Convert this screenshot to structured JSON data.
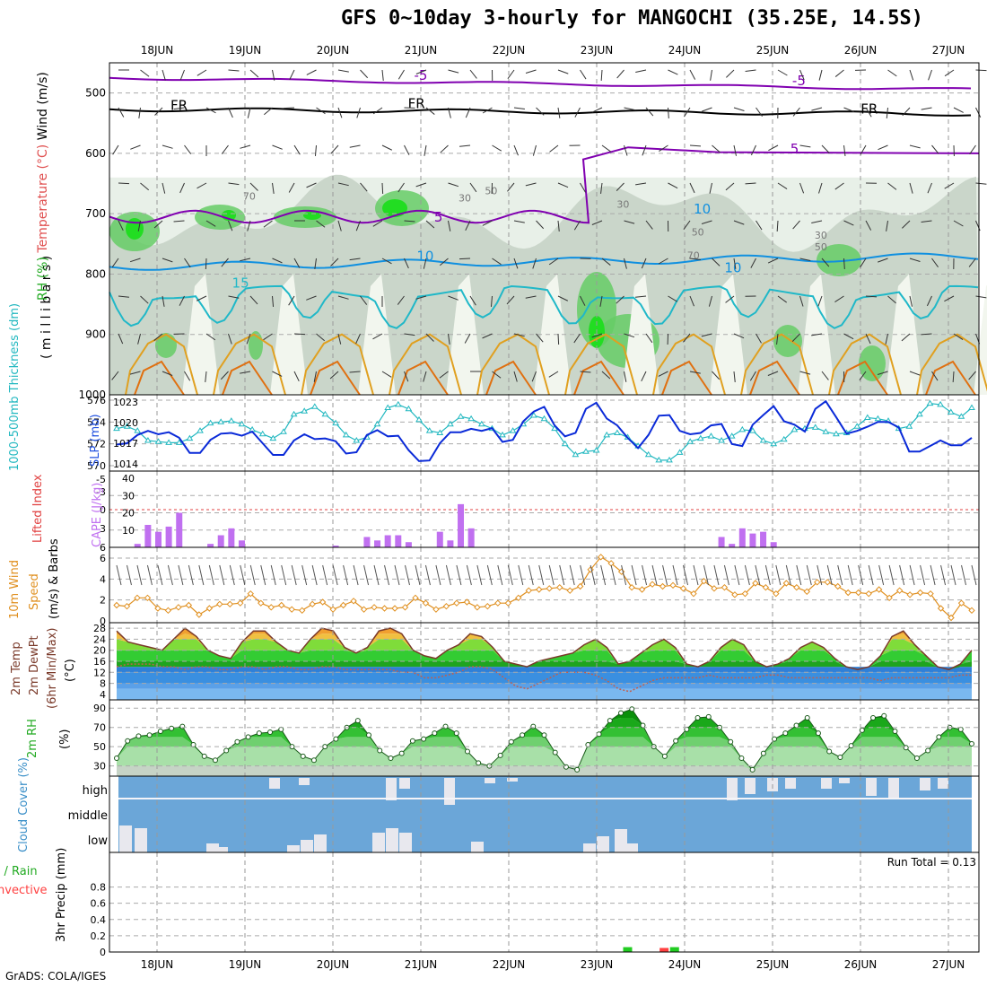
{
  "title": "GFS 0~10day 3-hourly for MANGOCHI (35.25E, 14.5S)",
  "footer": "GrADS: COLA/IGES",
  "colors": {
    "rh_light": "#e8f0e8",
    "rh_mid": "#c6d3c6",
    "rh_green": "#66cc66",
    "rh_bright": "#22dd22",
    "contour_purple": "#8000b0",
    "contour_cyan": "#20b8c8",
    "contour_blue": "#1090e0",
    "contour_orange": "#e0a020",
    "contour_dark_orange": "#e07010",
    "slp_line": "#0a2ad8",
    "thickness_line": "#22b8c0",
    "cape_bar": "#c070f0",
    "wind_line": "#e09020",
    "temp_band_blue": "#3a8fe0",
    "temp_band_green": "#22bb22",
    "rh_fill": "#22bb22",
    "cloud_blue": "#6ba6d8",
    "cloud_cover": "#e8e8ee",
    "precip_rain": "#22cc22",
    "precip_conv": "#ff4040"
  },
  "chart_data": [
    {
      "type": "heatmap",
      "panel": "upper-air",
      "ylabel_parts": [
        "RH (%)",
        "Temperature (°C)",
        "Wind (m/s)"
      ],
      "ylabel_secondary": "( m i l l i b a r s )",
      "x_tick_labels": [
        "18JUN",
        "19JUN",
        "20JUN",
        "21JUN",
        "22JUN",
        "23JUN",
        "24JUN",
        "25JUN",
        "26JUN",
        "27JUN"
      ],
      "y_ticks": [
        500,
        600,
        700,
        800,
        900,
        1000
      ],
      "ylim": [
        450,
        1000
      ],
      "contour_labels": [
        {
          "text": "-5",
          "x": 3.0,
          "y": 478
        },
        {
          "text": "-5",
          "x": 7.3,
          "y": 487
        },
        {
          "text": "FR",
          "x": 0.25,
          "y": 528
        },
        {
          "text": "FR",
          "x": 2.95,
          "y": 525
        },
        {
          "text": "FR",
          "x": 8.1,
          "y": 534
        },
        {
          "text": "5",
          "x": 7.25,
          "y": 600
        },
        {
          "text": "5",
          "x": 3.2,
          "y": 713
        },
        {
          "text": "10",
          "x": 3.05,
          "y": 778
        },
        {
          "text": "10",
          "x": 6.55,
          "y": 797
        },
        {
          "text": "15",
          "x": 0.95,
          "y": 822
        },
        {
          "text": "70",
          "x": 1.05,
          "y": 677
        },
        {
          "text": "30",
          "x": 3.5,
          "y": 680
        },
        {
          "text": "50",
          "x": 3.8,
          "y": 668
        },
        {
          "text": "30",
          "x": 5.3,
          "y": 690
        },
        {
          "text": "10",
          "x": 6.2,
          "y": 700
        },
        {
          "text": "50",
          "x": 6.15,
          "y": 736
        },
        {
          "text": "70",
          "x": 6.1,
          "y": 775
        },
        {
          "text": "30",
          "x": 7.55,
          "y": 741
        },
        {
          "text": "50",
          "x": 7.55,
          "y": 761
        }
      ]
    },
    {
      "type": "line",
      "panel": "slp-thickness",
      "ylabel_left": "1000-500mb Thickness (dm)",
      "ylabel_right": "SLP (mb)",
      "left_ticks": [
        570,
        572,
        574,
        576
      ],
      "right_ticks": [
        1014,
        1017,
        1020,
        1023
      ],
      "x_tick_labels": [
        "18JUN",
        "19JUN",
        "20JUN",
        "21JUN",
        "22JUN",
        "23JUN",
        "24JUN",
        "25JUN",
        "26JUN",
        "27JUN"
      ],
      "series": [
        {
          "name": "SLP (mb)",
          "values": [
            1016.8,
            1017.0,
            1018.2,
            1018.8,
            1018.3,
            1018.6,
            1017.8,
            1015.6,
            1015.6,
            1017.5,
            1018.4,
            1018.5,
            1018.1,
            1018.7,
            1017.0,
            1015.3,
            1015.3,
            1017.4,
            1018.3,
            1017.6,
            1017.7,
            1017.3,
            1015.5,
            1015.7,
            1018.2,
            1018.9,
            1018.0,
            1018.1,
            1016.0,
            1014.4,
            1014.5,
            1017.0,
            1018.6,
            1018.6,
            1019.1,
            1018.8,
            1019.2,
            1017.2,
            1017.5,
            1020.2,
            1021.6,
            1022.3,
            1019.6,
            1018.0,
            1018.5,
            1022.0,
            1022.9,
            1020.6,
            1019.6,
            1017.8,
            1016.3,
            1018.2,
            1021.0,
            1021.1,
            1018.8,
            1018.3,
            1018.5,
            1019.6,
            1019.8,
            1016.9,
            1016.6,
            1019.7,
            1021.1,
            1022.4,
            1020.2,
            1019.7,
            1018.7,
            1022.0,
            1023.1,
            1020.8,
            1018.4,
            1018.8,
            1019.4,
            1020.1,
            1020.1,
            1019.3,
            1015.8,
            1015.8,
            1016.6,
            1017.4,
            1016.7,
            1016.7,
            1017.8
          ]
        },
        {
          "name": "Thickness (dm)",
          "values": [
            573.4,
            573.6,
            573.2,
            572.3,
            572.2,
            572.1,
            572.1,
            572.5,
            573.2,
            573.9,
            574.0,
            574.1,
            573.8,
            573.3,
            572.9,
            572.5,
            573.1,
            574.7,
            575.0,
            575.4,
            574.7,
            573.9,
            572.8,
            572.3,
            572.6,
            573.8,
            575.3,
            575.6,
            575.2,
            574.2,
            573.2,
            573.0,
            573.8,
            574.5,
            574.3,
            573.8,
            573.4,
            572.8,
            573.2,
            573.8,
            574.6,
            574.3,
            573.4,
            572.0,
            571.0,
            571.3,
            571.4,
            572.8,
            573.0,
            572.6,
            571.8,
            571.0,
            570.5,
            570.5,
            571.2,
            572.2,
            572.5,
            572.7,
            572.3,
            572.7,
            573.3,
            573.2,
            572.3,
            572.0,
            572.4,
            573.3,
            573.4,
            573.5,
            573.1,
            572.9,
            573.0,
            573.6,
            574.4,
            574.3,
            574.1,
            573.4,
            573.6,
            574.7,
            575.7,
            575.6,
            574.9,
            574.5,
            575.3
          ]
        }
      ]
    },
    {
      "type": "bar",
      "panel": "cape",
      "ylabel_left": "Lifted Index",
      "ylabel_right": "CAPE (J/kg)",
      "left_ticks": [
        "-5",
        "-3",
        "0",
        "3",
        "6"
      ],
      "right_ticks": [
        10,
        20,
        30,
        40
      ],
      "x_tick_labels": [
        "18JUN",
        "19JUN",
        "20JUN",
        "21JUN",
        "22JUN",
        "23JUN",
        "24JUN",
        "25JUN",
        "26JUN",
        "27JUN"
      ],
      "values": [
        0,
        0,
        2,
        13,
        9,
        12,
        20,
        0,
        0,
        2,
        7,
        11,
        4,
        0,
        0,
        0,
        0,
        0,
        0,
        0,
        0,
        1,
        0,
        0,
        6,
        4,
        7,
        7,
        3,
        0,
        0,
        9,
        4,
        25,
        11,
        0,
        0,
        0,
        0,
        0,
        0,
        0,
        0,
        0,
        0,
        0,
        0,
        0,
        0,
        0,
        0,
        0,
        0,
        0,
        0,
        0,
        0,
        0,
        6,
        2,
        11,
        8,
        9,
        3,
        0,
        0,
        0,
        0,
        0,
        0,
        0,
        0,
        0,
        0,
        0,
        0,
        0,
        0,
        0,
        0,
        0,
        0,
        0
      ]
    },
    {
      "type": "line",
      "panel": "10m-wind",
      "ylabel": "10m Wind Speed (m/s) & Barbs",
      "y_ticks": [
        0,
        2,
        4,
        6
      ],
      "x_tick_labels": [
        "18JUN",
        "19JUN",
        "20JUN",
        "21JUN",
        "22JUN",
        "23JUN",
        "24JUN",
        "25JUN",
        "26JUN",
        "27JUN"
      ],
      "values": [
        1.5,
        1.4,
        2.2,
        2.2,
        1.2,
        1.0,
        1.3,
        1.5,
        0.6,
        1.2,
        1.6,
        1.6,
        1.7,
        2.6,
        1.7,
        1.3,
        1.5,
        1.1,
        1.0,
        1.6,
        1.8,
        1.1,
        1.5,
        1.9,
        1.1,
        1.3,
        1.2,
        1.2,
        1.3,
        2.2,
        1.7,
        1.1,
        1.4,
        1.7,
        1.8,
        1.3,
        1.4,
        1.7,
        1.7,
        2.2,
        2.9,
        3.0,
        3.1,
        3.2,
        2.9,
        3.3,
        4.9,
        6.1,
        5.5,
        4.7,
        3.2,
        3.0,
        3.5,
        3.3,
        3.4,
        3.1,
        2.6,
        3.8,
        3.1,
        3.2,
        2.5,
        2.6,
        3.6,
        3.2,
        2.6,
        3.6,
        3.2,
        2.8,
        3.7,
        3.7,
        3.3,
        2.7,
        2.7,
        2.6,
        3.0,
        2.2,
        2.9,
        2.5,
        2.7,
        2.6,
        1.2,
        0.3,
        1.7,
        1.0
      ]
    },
    {
      "type": "area",
      "panel": "2m-temp",
      "ylabel": "2m Temp 2m DewPt (6hr Min/Max) (°C)",
      "y_ticks": [
        4,
        8,
        12,
        16,
        20,
        24,
        28
      ],
      "x_tick_labels": [
        "18JUN",
        "19JUN",
        "20JUN",
        "21JUN",
        "22JUN",
        "23JUN",
        "24JUN",
        "25JUN",
        "26JUN",
        "27JUN"
      ],
      "series": [
        {
          "name": "2m Temp",
          "values": [
            27,
            23,
            22,
            21,
            20,
            24,
            28,
            25,
            20,
            18,
            17,
            23,
            27,
            27,
            23,
            20,
            19,
            24,
            28,
            27,
            21,
            19,
            21,
            27,
            28,
            26,
            20,
            18,
            17,
            20,
            22,
            26,
            25,
            21,
            16,
            15,
            14,
            16,
            17,
            18,
            19,
            22,
            24,
            21,
            15,
            16,
            19,
            22,
            24,
            21,
            15,
            14,
            16,
            21,
            24,
            22,
            16,
            14,
            15,
            17,
            21,
            23,
            21,
            17,
            14,
            13,
            14,
            18,
            25,
            27,
            22,
            18,
            14,
            13,
            15,
            20
          ]
        },
        {
          "name": "2m DewPt",
          "values": [
            14,
            15,
            15,
            15,
            14,
            14,
            13,
            14,
            14,
            13,
            13,
            14,
            14,
            13,
            14,
            14,
            13,
            13,
            14,
            14,
            13,
            13,
            13,
            13,
            13,
            12,
            12,
            10,
            10,
            11,
            12,
            14,
            14,
            13,
            10,
            7,
            6,
            8,
            10,
            12,
            12,
            12,
            11,
            9,
            6,
            5,
            7,
            9,
            10,
            10,
            10,
            10,
            11,
            10,
            10,
            10,
            10,
            11,
            11,
            10,
            10,
            10,
            10,
            10,
            10,
            10,
            10,
            9,
            10,
            10,
            10,
            10,
            10,
            10,
            11,
            11
          ]
        }
      ]
    },
    {
      "type": "area",
      "panel": "2m-rh",
      "ylabel": "2m RH (%)",
      "y_ticks": [
        30,
        50,
        70,
        90
      ],
      "x_tick_labels": [
        "18JUN",
        "19JUN",
        "20JUN",
        "21JUN",
        "22JUN",
        "23JUN",
        "24JUN",
        "25JUN",
        "26JUN",
        "27JUN"
      ],
      "values": [
        38,
        56,
        61,
        62,
        66,
        69,
        71,
        52,
        40,
        36,
        46,
        55,
        60,
        64,
        65,
        68,
        50,
        40,
        36,
        50,
        58,
        70,
        77,
        62,
        46,
        38,
        43,
        56,
        58,
        64,
        71,
        64,
        45,
        33,
        30,
        41,
        55,
        62,
        71,
        62,
        44,
        29,
        26,
        52,
        63,
        77,
        85,
        89,
        72,
        50,
        40,
        56,
        68,
        80,
        81,
        70,
        55,
        38,
        26,
        43,
        58,
        64,
        72,
        80,
        64,
        45,
        39,
        51,
        67,
        80,
        82,
        66,
        49,
        38,
        46,
        60,
        70,
        68,
        53
      ]
    },
    {
      "type": "area",
      "panel": "cloud-cover",
      "ylabel": "Cloud Cover (%)",
      "layer_labels": [
        "high",
        "middle",
        "low"
      ],
      "x_tick_labels": [
        "18JUN",
        "19JUN",
        "20JUN",
        "21JUN",
        "22JUN",
        "23JUN",
        "24JUN",
        "25JUN",
        "26JUN",
        "27JUN"
      ]
    },
    {
      "type": "bar",
      "panel": "precip",
      "ylabel": "3hr Precip (mm)",
      "legend_total": "Total / Rain",
      "legend_convective": "Convective",
      "run_total": "Run Total = 0.13",
      "y_ticks": [
        "0",
        "0.2",
        "0.4",
        "0.6",
        "0.8"
      ],
      "x_tick_labels": [
        "18JUN",
        "19JUN",
        "20JUN",
        "21JUN",
        "22JUN",
        "23JUN",
        "24JUN",
        "25JUN",
        "26JUN",
        "27JUN"
      ],
      "bars": [
        {
          "x": 49.0,
          "value": 0.06,
          "kind": "rain"
        },
        {
          "x": 52.5,
          "value": 0.05,
          "kind": "convective"
        },
        {
          "x": 53.5,
          "value": 0.06,
          "kind": "rain"
        }
      ]
    }
  ]
}
